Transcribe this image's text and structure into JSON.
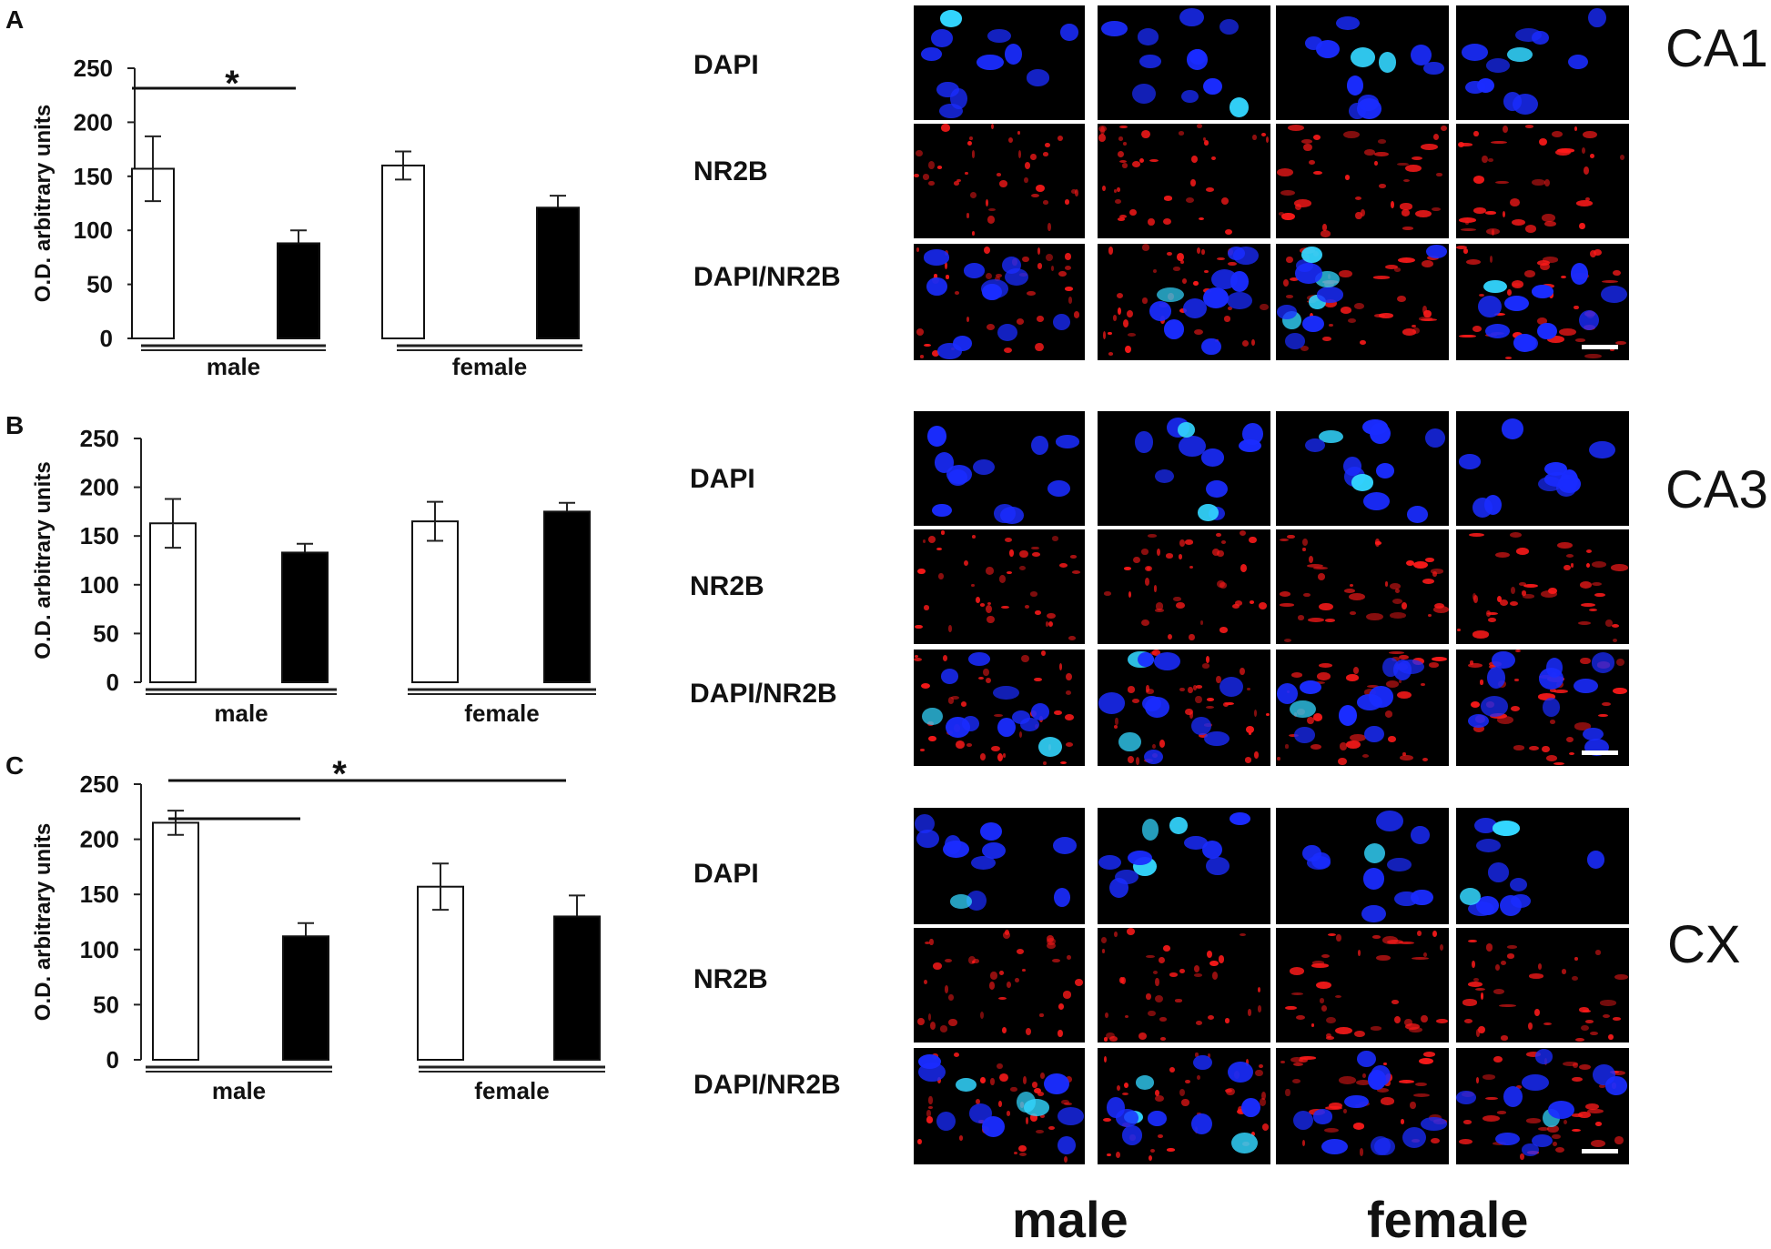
{
  "colors": {
    "control": "#ffffff",
    "treated": "#000000",
    "dapi": "#1a2cff",
    "dapi_bright": "#33d6ff",
    "nr2b": "#ff1a1a"
  },
  "panels": [
    {
      "letter": "A",
      "region": "CA1"
    },
    {
      "letter": "B",
      "region": "CA3"
    },
    {
      "letter": "C",
      "region": "CX"
    }
  ],
  "channel_labels": [
    "DAPI",
    "NR2B",
    "DAPI/NR2B"
  ],
  "bottom_labels": {
    "male": "male",
    "female": "female"
  },
  "chart_data": [
    {
      "type": "bar",
      "panel": "A",
      "ylabel": "O.D. arbitrary units",
      "ylim": [
        0,
        250
      ],
      "yticks": [
        "0",
        "50",
        "100",
        "150",
        "200",
        "250"
      ],
      "groups": [
        "male",
        "female"
      ],
      "series": [
        {
          "values": [
            157,
            160
          ],
          "errors": [
            30,
            13
          ],
          "color": "#ffffff"
        },
        {
          "values": [
            88,
            121
          ],
          "errors": [
            12,
            11
          ],
          "color": "#000000"
        }
      ],
      "annotations": [
        {
          "text": "*",
          "type": "significance",
          "between": "male control vs male treated"
        }
      ]
    },
    {
      "type": "bar",
      "panel": "B",
      "ylabel": "O.D. arbitrary units",
      "ylim": [
        0,
        250
      ],
      "yticks": [
        "0",
        "50",
        "100",
        "150",
        "200",
        "250"
      ],
      "groups": [
        "male",
        "female"
      ],
      "series": [
        {
          "values": [
            163,
            165
          ],
          "errors": [
            25,
            20
          ],
          "color": "#ffffff"
        },
        {
          "values": [
            133,
            175
          ],
          "errors": [
            9,
            9
          ],
          "color": "#000000"
        }
      ],
      "annotations": []
    },
    {
      "type": "bar",
      "panel": "C",
      "ylabel": "O.D. arbitrary units",
      "ylim": [
        0,
        250
      ],
      "yticks": [
        "0",
        "50",
        "100",
        "150",
        "200",
        "250"
      ],
      "groups": [
        "male",
        "female"
      ],
      "series": [
        {
          "values": [
            215,
            157
          ],
          "errors": [
            11,
            21
          ],
          "color": "#ffffff"
        },
        {
          "values": [
            112,
            130
          ],
          "errors": [
            12,
            19
          ],
          "color": "#000000"
        }
      ],
      "annotations": [
        {
          "text": "*",
          "type": "significance",
          "between": "male control vs male treated and female treated"
        }
      ]
    }
  ]
}
